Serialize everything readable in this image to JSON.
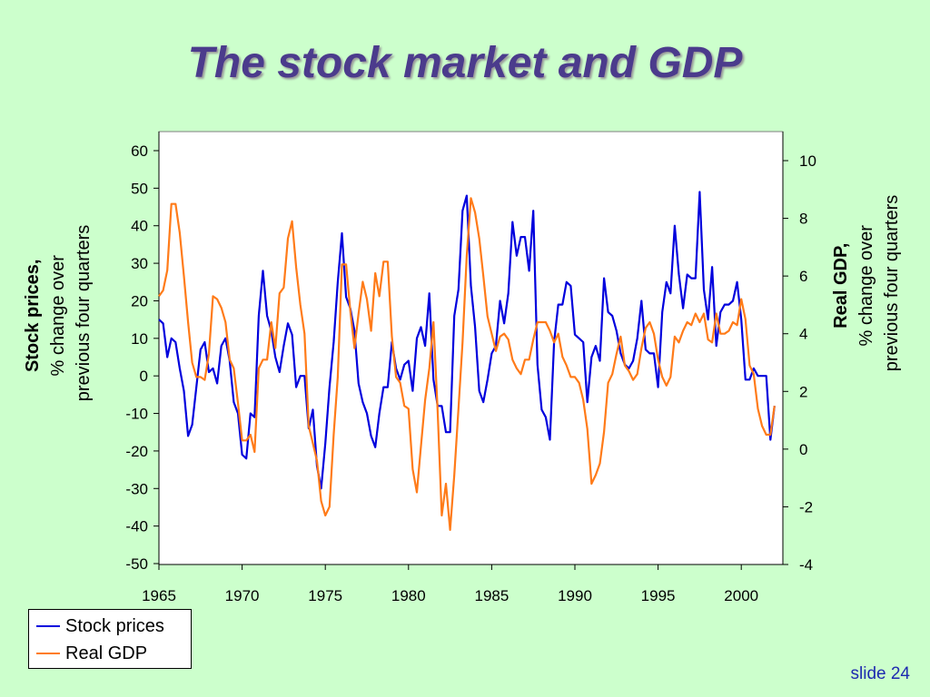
{
  "slide": {
    "title": "The stock market and GDP",
    "number": "slide 24"
  },
  "colors": {
    "background": "#ccffcc",
    "title": "#4b3b8c",
    "stock": "#0000dd",
    "gdp": "#ff7b19"
  },
  "chart_data": {
    "type": "line",
    "x_ticks": [
      "1965",
      "1970",
      "1975",
      "1980",
      "1985",
      "1990",
      "1995",
      "2000"
    ],
    "xlim": [
      1965,
      2002.5
    ],
    "left_axis": {
      "label_bold": "Stock prices,",
      "label_line2": "% change over",
      "label_line3": "previous four quarters",
      "ylim": [
        -50,
        60
      ],
      "ticks": [
        "60",
        "50",
        "40",
        "30",
        "20",
        "10",
        "0",
        "-10",
        "-20",
        "-30",
        "-40",
        "-50"
      ]
    },
    "right_axis": {
      "label_bold": "Real GDP,",
      "label_line2": "% change over",
      "label_line3": "previous four quarters",
      "ylim": [
        -4,
        10.3
      ],
      "ticks": [
        "10",
        "8",
        "6",
        "4",
        "2",
        "0",
        "-2",
        "-4"
      ]
    },
    "grid": false,
    "legend_position": "bottom-left",
    "series": [
      {
        "name": "Stock prices",
        "axis": "left",
        "color": "#0000dd",
        "points": [
          [
            1965.0,
            15
          ],
          [
            1965.25,
            14
          ],
          [
            1965.5,
            5
          ],
          [
            1965.75,
            10
          ],
          [
            1966.0,
            9
          ],
          [
            1966.25,
            2
          ],
          [
            1966.5,
            -4
          ],
          [
            1966.75,
            -16
          ],
          [
            1967.0,
            -13
          ],
          [
            1967.25,
            -3
          ],
          [
            1967.5,
            7
          ],
          [
            1967.75,
            9
          ],
          [
            1968.0,
            1
          ],
          [
            1968.25,
            2
          ],
          [
            1968.5,
            -2
          ],
          [
            1968.75,
            8
          ],
          [
            1969.0,
            10
          ],
          [
            1969.25,
            4
          ],
          [
            1969.5,
            -7
          ],
          [
            1969.75,
            -10
          ],
          [
            1970.0,
            -21
          ],
          [
            1970.25,
            -22
          ],
          [
            1970.5,
            -10
          ],
          [
            1970.75,
            -11
          ],
          [
            1971.0,
            16
          ],
          [
            1971.25,
            28
          ],
          [
            1971.5,
            16
          ],
          [
            1971.75,
            12
          ],
          [
            1972.0,
            5
          ],
          [
            1972.25,
            1
          ],
          [
            1972.5,
            8
          ],
          [
            1972.75,
            14
          ],
          [
            1973.0,
            11
          ],
          [
            1973.25,
            -3
          ],
          [
            1973.5,
            0
          ],
          [
            1973.75,
            0
          ],
          [
            1974.0,
            -14
          ],
          [
            1974.25,
            -9
          ],
          [
            1974.5,
            -24
          ],
          [
            1974.75,
            -30
          ],
          [
            1975.0,
            -18
          ],
          [
            1975.25,
            -3
          ],
          [
            1975.5,
            9
          ],
          [
            1975.75,
            25
          ],
          [
            1976.0,
            38
          ],
          [
            1976.25,
            21
          ],
          [
            1976.5,
            18
          ],
          [
            1976.75,
            12
          ],
          [
            1977.0,
            -2
          ],
          [
            1977.25,
            -7
          ],
          [
            1977.5,
            -10
          ],
          [
            1977.75,
            -16
          ],
          [
            1978.0,
            -19
          ],
          [
            1978.25,
            -10
          ],
          [
            1978.5,
            -3
          ],
          [
            1978.75,
            -3
          ],
          [
            1979.0,
            9
          ],
          [
            1979.25,
            2
          ],
          [
            1979.5,
            -1
          ],
          [
            1979.75,
            3
          ],
          [
            1980.0,
            4
          ],
          [
            1980.25,
            -4
          ],
          [
            1980.5,
            10
          ],
          [
            1980.75,
            13
          ],
          [
            1981.0,
            8
          ],
          [
            1981.25,
            22
          ],
          [
            1981.5,
            -1
          ],
          [
            1981.75,
            -8
          ],
          [
            1982.0,
            -8
          ],
          [
            1982.25,
            -15
          ],
          [
            1982.5,
            -15
          ],
          [
            1982.75,
            16
          ],
          [
            1983.0,
            23
          ],
          [
            1983.25,
            44
          ],
          [
            1983.5,
            48
          ],
          [
            1983.75,
            24
          ],
          [
            1984.0,
            13
          ],
          [
            1984.25,
            -4
          ],
          [
            1984.5,
            -7
          ],
          [
            1984.75,
            -1
          ],
          [
            1985.0,
            6
          ],
          [
            1985.25,
            8
          ],
          [
            1985.5,
            20
          ],
          [
            1985.75,
            14
          ],
          [
            1986.0,
            22
          ],
          [
            1986.25,
            41
          ],
          [
            1986.5,
            32
          ],
          [
            1986.75,
            37
          ],
          [
            1987.0,
            37
          ],
          [
            1987.25,
            28
          ],
          [
            1987.5,
            44
          ],
          [
            1987.75,
            3
          ],
          [
            1988.0,
            -9
          ],
          [
            1988.25,
            -11
          ],
          [
            1988.5,
            -17
          ],
          [
            1988.75,
            9
          ],
          [
            1989.0,
            19
          ],
          [
            1989.25,
            19
          ],
          [
            1989.5,
            25
          ],
          [
            1989.75,
            24
          ],
          [
            1990.0,
            11
          ],
          [
            1990.25,
            10
          ],
          [
            1990.5,
            9
          ],
          [
            1990.75,
            -7
          ],
          [
            1991.0,
            5
          ],
          [
            1991.25,
            8
          ],
          [
            1991.5,
            4
          ],
          [
            1991.75,
            26
          ],
          [
            1992.0,
            17
          ],
          [
            1992.25,
            16
          ],
          [
            1992.5,
            12
          ],
          [
            1992.75,
            6
          ],
          [
            1993.0,
            3
          ],
          [
            1993.25,
            2
          ],
          [
            1993.5,
            4
          ],
          [
            1993.75,
            10
          ],
          [
            1994.0,
            20
          ],
          [
            1994.25,
            7
          ],
          [
            1994.5,
            6
          ],
          [
            1994.75,
            6
          ],
          [
            1995.0,
            -3
          ],
          [
            1995.25,
            17
          ],
          [
            1995.5,
            25
          ],
          [
            1995.75,
            22
          ],
          [
            1996.0,
            40
          ],
          [
            1996.25,
            27
          ],
          [
            1996.5,
            18
          ],
          [
            1996.75,
            27
          ],
          [
            1997.0,
            26
          ],
          [
            1997.25,
            26
          ],
          [
            1997.5,
            49
          ],
          [
            1997.75,
            23
          ],
          [
            1998.0,
            15
          ],
          [
            1998.25,
            29
          ],
          [
            1998.5,
            8
          ],
          [
            1998.75,
            17
          ],
          [
            1999.0,
            19
          ],
          [
            1999.25,
            19
          ],
          [
            1999.5,
            20
          ],
          [
            1999.75,
            25
          ],
          [
            2000.0,
            15
          ],
          [
            2000.25,
            -1
          ],
          [
            2000.5,
            -1
          ],
          [
            2000.75,
            2
          ],
          [
            2001.0,
            0
          ],
          [
            2001.25,
            0
          ],
          [
            2001.5,
            0
          ],
          [
            2001.75,
            -17
          ],
          [
            2002.0,
            -8
          ]
        ]
      },
      {
        "name": "Real GDP",
        "axis": "right",
        "color": "#ff7b19",
        "points": [
          [
            1965.0,
            5.3
          ],
          [
            1965.25,
            5.5
          ],
          [
            1965.5,
            6.2
          ],
          [
            1965.75,
            8.5
          ],
          [
            1966.0,
            8.5
          ],
          [
            1966.25,
            7.5
          ],
          [
            1966.5,
            6.0
          ],
          [
            1966.75,
            4.4
          ],
          [
            1967.0,
            3.0
          ],
          [
            1967.25,
            2.5
          ],
          [
            1967.5,
            2.5
          ],
          [
            1967.75,
            2.4
          ],
          [
            1968.0,
            3.3
          ],
          [
            1968.25,
            5.3
          ],
          [
            1968.5,
            5.2
          ],
          [
            1968.75,
            4.9
          ],
          [
            1969.0,
            4.4
          ],
          [
            1969.25,
            3.1
          ],
          [
            1969.5,
            2.8
          ],
          [
            1969.75,
            1.6
          ],
          [
            1970.0,
            0.3
          ],
          [
            1970.25,
            0.3
          ],
          [
            1970.5,
            0.5
          ],
          [
            1970.75,
            -0.1
          ],
          [
            1971.0,
            2.8
          ],
          [
            1971.25,
            3.1
          ],
          [
            1971.5,
            3.1
          ],
          [
            1971.75,
            4.4
          ],
          [
            1972.0,
            3.5
          ],
          [
            1972.25,
            5.4
          ],
          [
            1972.5,
            5.6
          ],
          [
            1972.75,
            7.3
          ],
          [
            1973.0,
            7.9
          ],
          [
            1973.25,
            6.3
          ],
          [
            1973.5,
            5.0
          ],
          [
            1973.75,
            4.0
          ],
          [
            1974.0,
            0.8
          ],
          [
            1974.25,
            0.2
          ],
          [
            1974.5,
            -0.4
          ],
          [
            1974.75,
            -1.8
          ],
          [
            1975.0,
            -2.3
          ],
          [
            1975.25,
            -2.0
          ],
          [
            1975.5,
            0.5
          ],
          [
            1975.75,
            2.5
          ],
          [
            1976.0,
            6.4
          ],
          [
            1976.25,
            6.4
          ],
          [
            1976.5,
            4.8
          ],
          [
            1976.75,
            3.5
          ],
          [
            1977.0,
            4.7
          ],
          [
            1977.25,
            5.8
          ],
          [
            1977.5,
            5.2
          ],
          [
            1977.75,
            4.1
          ],
          [
            1978.0,
            6.1
          ],
          [
            1978.25,
            5.3
          ],
          [
            1978.5,
            6.5
          ],
          [
            1978.75,
            6.5
          ],
          [
            1979.0,
            3.9
          ],
          [
            1979.25,
            2.5
          ],
          [
            1979.5,
            2.3
          ],
          [
            1979.75,
            1.5
          ],
          [
            1980.0,
            1.4
          ],
          [
            1980.25,
            -0.7
          ],
          [
            1980.5,
            -1.5
          ],
          [
            1980.75,
            0.1
          ],
          [
            1981.0,
            1.7
          ],
          [
            1981.25,
            2.8
          ],
          [
            1981.5,
            4.4
          ],
          [
            1981.75,
            1.3
          ],
          [
            1982.0,
            -2.3
          ],
          [
            1982.25,
            -1.2
          ],
          [
            1982.5,
            -2.8
          ],
          [
            1982.75,
            -0.9
          ],
          [
            1983.0,
            1.4
          ],
          [
            1983.25,
            3.7
          ],
          [
            1983.5,
            6.7
          ],
          [
            1983.75,
            8.7
          ],
          [
            1984.0,
            8.2
          ],
          [
            1984.25,
            7.3
          ],
          [
            1984.5,
            6.0
          ],
          [
            1984.75,
            4.6
          ],
          [
            1985.0,
            4.0
          ],
          [
            1985.25,
            3.4
          ],
          [
            1985.5,
            3.9
          ],
          [
            1985.75,
            4.0
          ],
          [
            1986.0,
            3.8
          ],
          [
            1986.25,
            3.1
          ],
          [
            1986.5,
            2.8
          ],
          [
            1986.75,
            2.6
          ],
          [
            1987.0,
            3.1
          ],
          [
            1987.25,
            3.1
          ],
          [
            1987.5,
            3.8
          ],
          [
            1987.75,
            4.4
          ],
          [
            1988.0,
            4.4
          ],
          [
            1988.25,
            4.4
          ],
          [
            1988.5,
            4.1
          ],
          [
            1988.75,
            3.7
          ],
          [
            1989.0,
            4.0
          ],
          [
            1989.25,
            3.2
          ],
          [
            1989.5,
            2.9
          ],
          [
            1989.75,
            2.5
          ],
          [
            1990.0,
            2.5
          ],
          [
            1990.25,
            2.3
          ],
          [
            1990.5,
            1.7
          ],
          [
            1990.75,
            0.7
          ],
          [
            1991.0,
            -1.2
          ],
          [
            1991.25,
            -0.9
          ],
          [
            1991.5,
            -0.5
          ],
          [
            1991.75,
            0.6
          ],
          [
            1992.0,
            2.3
          ],
          [
            1992.25,
            2.6
          ],
          [
            1992.5,
            3.3
          ],
          [
            1992.75,
            3.9
          ],
          [
            1993.0,
            2.9
          ],
          [
            1993.25,
            2.7
          ],
          [
            1993.5,
            2.4
          ],
          [
            1993.75,
            2.6
          ],
          [
            1994.0,
            3.5
          ],
          [
            1994.25,
            4.2
          ],
          [
            1994.5,
            4.4
          ],
          [
            1994.75,
            4.0
          ],
          [
            1995.0,
            3.1
          ],
          [
            1995.25,
            2.5
          ],
          [
            1995.5,
            2.2
          ],
          [
            1995.75,
            2.5
          ],
          [
            1996.0,
            3.9
          ],
          [
            1996.25,
            3.7
          ],
          [
            1996.5,
            4.1
          ],
          [
            1996.75,
            4.4
          ],
          [
            1997.0,
            4.3
          ],
          [
            1997.25,
            4.7
          ],
          [
            1997.5,
            4.4
          ],
          [
            1997.75,
            4.7
          ],
          [
            1998.0,
            3.8
          ],
          [
            1998.25,
            3.7
          ],
          [
            1998.5,
            4.7
          ],
          [
            1998.75,
            4.0
          ],
          [
            1999.0,
            4.0
          ],
          [
            1999.25,
            4.1
          ],
          [
            1999.5,
            4.4
          ],
          [
            1999.75,
            4.3
          ],
          [
            2000.0,
            5.2
          ],
          [
            2000.25,
            4.5
          ],
          [
            2000.5,
            2.9
          ],
          [
            2000.75,
            2.6
          ],
          [
            2001.0,
            1.4
          ],
          [
            2001.25,
            0.8
          ],
          [
            2001.5,
            0.5
          ],
          [
            2001.75,
            0.5
          ],
          [
            2002.0,
            1.5
          ]
        ]
      }
    ]
  },
  "legend": {
    "stock_label": "Stock prices",
    "gdp_label": "Real GDP"
  }
}
